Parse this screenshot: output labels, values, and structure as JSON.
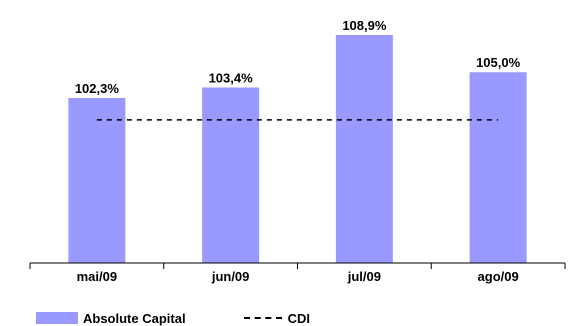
{
  "chart_data": {
    "type": "bar",
    "categories": [
      "mai/09",
      "jun/09",
      "jul/09",
      "ago/09"
    ],
    "series": [
      {
        "name": "Absolute Capital",
        "values": [
          102.3,
          103.4,
          108.9,
          105.0
        ],
        "labels": [
          "102,3%",
          "103,4%",
          "108,9%",
          "105,0%"
        ],
        "color": "#9999ff"
      },
      {
        "name": "CDI",
        "values": [
          100,
          100,
          100,
          100
        ],
        "style": "dashed-line",
        "color": "#000000"
      }
    ],
    "ylim": [
      85,
      111
    ],
    "grid": false,
    "legend_position": "bottom-left"
  }
}
